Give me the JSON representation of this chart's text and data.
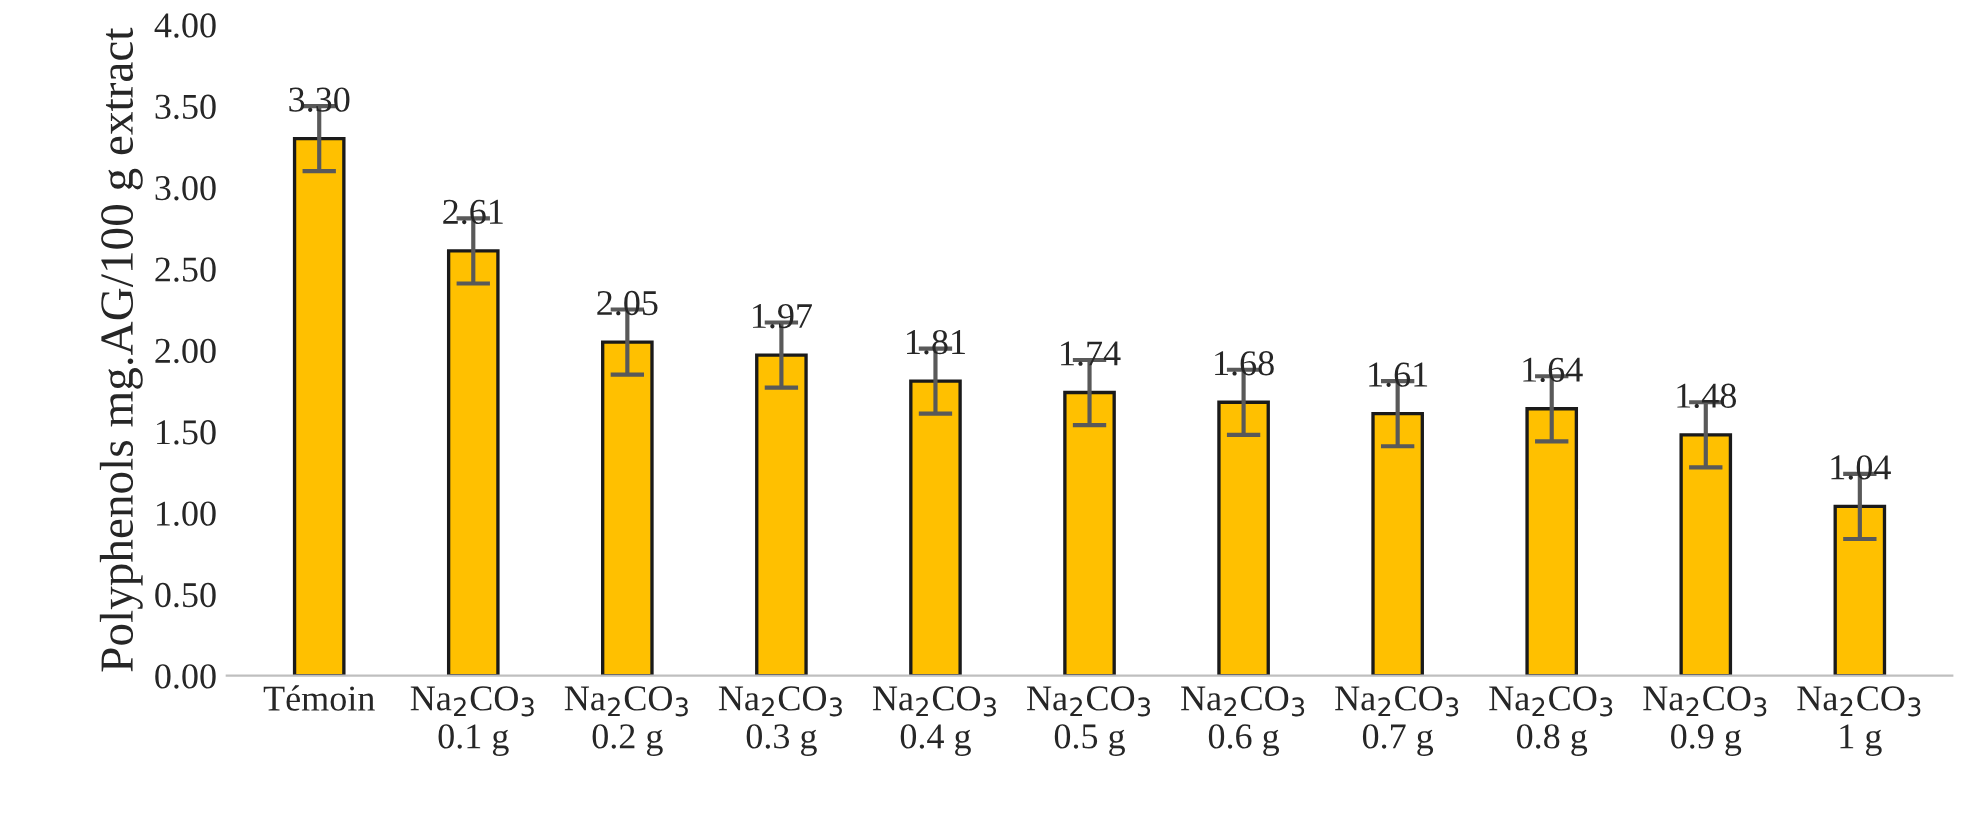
{
  "chart_data": {
    "type": "bar",
    "ylabel": "Polyphenols mg.AG/100 g extract",
    "categories": [
      "Témoin",
      "Na$_{2}$CO$_{3}$\n0.1 g",
      "Na$_{2}$CO$_{3}$\n0.2 g",
      "Na$_{2}$CO$_{3}$\n0.3 g",
      "Na$_{2}$CO$_{3}$\n0.4 g",
      "Na$_{2}$CO$_{3}$\n0.5 g",
      "Na$_{2}$CO$_{3}$\n0.6 g",
      "Na$_{2}$CO$_{3}$\n0.7 g",
      "Na$_{2}$CO$_{3}$\n0.8 g",
      "Na$_{2}$CO$_{3}$\n0.9 g",
      "Na$_{2}$CO$_{3}$\n1 g"
    ],
    "values": [
      3.3,
      2.61,
      2.05,
      1.97,
      1.81,
      1.74,
      1.68,
      1.61,
      1.64,
      1.48,
      1.04
    ],
    "errors": [
      0.2,
      0.2,
      0.2,
      0.2,
      0.2,
      0.2,
      0.2,
      0.2,
      0.2,
      0.2,
      0.2
    ],
    "value_labels": [
      "3.30",
      "2.61",
      "2.05",
      "1.97",
      "1.81",
      "1.74",
      "1.68",
      "1.61",
      "1.64",
      "1.48",
      "1.04"
    ],
    "color": "#ffc000",
    "ylim": [
      0,
      4
    ],
    "yticks": [
      {
        "value": 0,
        "label": "0.00"
      },
      {
        "value": 0.5,
        "label": "0.50"
      },
      {
        "value": 1,
        "label": "1.00"
      },
      {
        "value": 1.5,
        "label": "1.50"
      },
      {
        "value": 2,
        "label": "2.00"
      },
      {
        "value": 2.5,
        "label": "2.50"
      },
      {
        "value": 3,
        "label": "3.00"
      },
      {
        "value": 3.5,
        "label": "3.50"
      },
      {
        "value": 4,
        "label": "4.00"
      }
    ],
    "grid": false,
    "legend": false
  }
}
